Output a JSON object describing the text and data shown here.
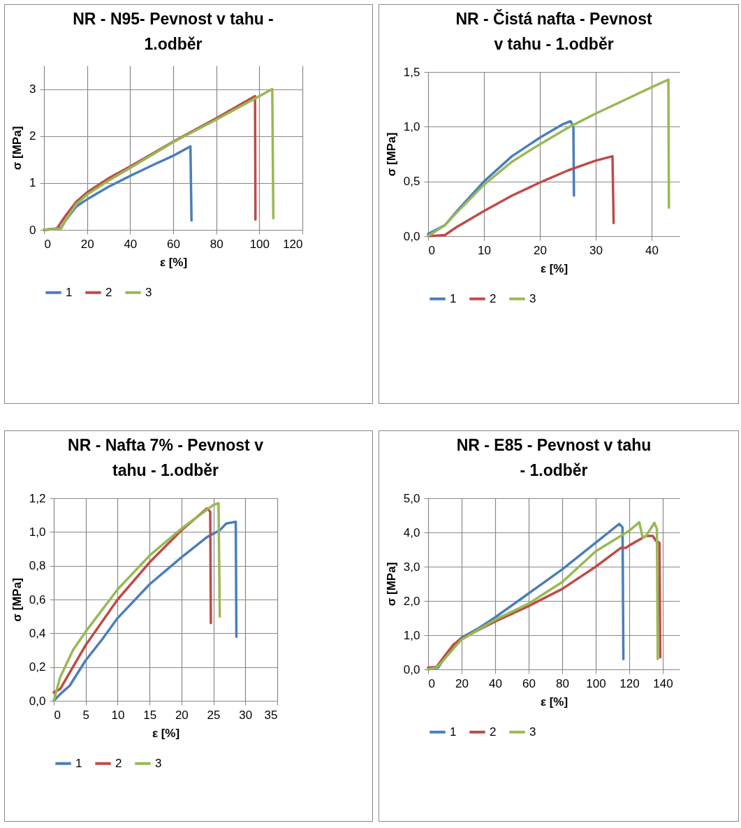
{
  "chart_data": [
    {
      "type": "line",
      "title": "NR - N95- Pevnost v tahu - 1.odběr",
      "xlabel": "ε [%]",
      "ylabel": "σ [MPa]",
      "xlim": [
        0,
        120
      ],
      "xticks": [
        0,
        20,
        40,
        60,
        80,
        100,
        120
      ],
      "ylim": [
        0,
        3.5
      ],
      "yticks": [
        0,
        1,
        2,
        3
      ],
      "grid": true,
      "legend": "bottom",
      "marker": "none",
      "line_style": "solid",
      "series": [
        {
          "name": "1",
          "color": "#4a7ebb",
          "x": [
            0,
            5,
            8,
            10,
            15,
            20,
            30,
            40,
            50,
            60,
            68,
            68.5
          ],
          "values": [
            0,
            0.02,
            0.05,
            0.2,
            0.5,
            0.65,
            0.92,
            1.15,
            1.37,
            1.58,
            1.78,
            0.2
          ]
        },
        {
          "name": "2",
          "color": "#be4b48",
          "x": [
            0,
            6,
            10,
            15,
            20,
            30,
            40,
            60,
            80,
            98,
            98.2
          ],
          "values": [
            0,
            0.03,
            0.3,
            0.6,
            0.8,
            1.1,
            1.35,
            1.88,
            2.38,
            2.85,
            0.22
          ]
        },
        {
          "name": "3",
          "color": "#98b954",
          "x": [
            0,
            8,
            10,
            15,
            20,
            30,
            40,
            60,
            80,
            100,
            106,
            106.5
          ],
          "values": [
            0,
            0.03,
            0.2,
            0.55,
            0.75,
            1.05,
            1.32,
            1.87,
            2.35,
            2.85,
            3.0,
            0.25
          ]
        }
      ]
    },
    {
      "type": "line",
      "title": "NR - Čistá nafta - Pevnost v tahu - 1.odběr",
      "xlabel": "ε [%]",
      "ylabel": "σ [MPa]",
      "xlim": [
        0,
        45
      ],
      "xticks": [
        0,
        10,
        20,
        30,
        40
      ],
      "ylim": [
        0,
        1.5
      ],
      "yticks": [
        {
          "value": 0,
          "label": "0,0"
        },
        {
          "value": 0.5,
          "label": "0,5"
        },
        {
          "value": 1,
          "label": "1,0"
        },
        {
          "value": 1.5,
          "label": "1,5"
        }
      ],
      "grid": true,
      "legend": "bottom",
      "marker": "none",
      "line_style": "solid",
      "series": [
        {
          "name": "1",
          "color": "#4a7ebb",
          "x": [
            0,
            3,
            5,
            10,
            15,
            20,
            24,
            25.5,
            26,
            26.1
          ],
          "values": [
            0.02,
            0.1,
            0.22,
            0.5,
            0.73,
            0.9,
            1.02,
            1.05,
            1.0,
            0.37
          ]
        },
        {
          "name": "2",
          "color": "#be4b48",
          "x": [
            0,
            3,
            5,
            10,
            15,
            20,
            25,
            30,
            33,
            33.2
          ],
          "values": [
            0,
            0.01,
            0.08,
            0.23,
            0.37,
            0.49,
            0.6,
            0.69,
            0.73,
            0.12
          ]
        },
        {
          "name": "3",
          "color": "#98b954",
          "x": [
            0,
            3,
            5,
            10,
            15,
            20,
            25,
            30,
            35,
            40,
            43,
            43.1
          ],
          "values": [
            0,
            0.1,
            0.21,
            0.47,
            0.68,
            0.84,
            0.99,
            1.12,
            1.24,
            1.36,
            1.43,
            0.26
          ]
        }
      ]
    },
    {
      "type": "line",
      "title": "NR - Nafta 7% - Pevnost v tahu - 1.odběr",
      "xlabel": "ε [%]",
      "ylabel": "σ [MPa]",
      "xlim": [
        0,
        35
      ],
      "xticks": [
        0,
        5,
        10,
        15,
        20,
        25,
        30,
        35
      ],
      "ylim": [
        0,
        1.2
      ],
      "yticks": [
        {
          "value": 0,
          "label": "0,0"
        },
        {
          "value": 0.2,
          "label": "0,2"
        },
        {
          "value": 0.4,
          "label": "0,4"
        },
        {
          "value": 0.6,
          "label": "0,6"
        },
        {
          "value": 0.8,
          "label": "0,8"
        },
        {
          "value": 1,
          "label": "1,0"
        },
        {
          "value": 1.2,
          "label": "1,2"
        }
      ],
      "grid": true,
      "legend": "bottom",
      "marker": "none",
      "line_style": "solid",
      "series": [
        {
          "name": "1",
          "color": "#4a7ebb",
          "x": [
            0,
            1,
            2.5,
            4,
            5,
            7.5,
            10,
            15,
            20,
            24,
            26,
            27,
            28.5,
            28.6
          ],
          "values": [
            0,
            0.04,
            0.09,
            0.18,
            0.24,
            0.36,
            0.49,
            0.69,
            0.85,
            0.97,
            1.01,
            1.05,
            1.06,
            0.38
          ]
        },
        {
          "name": "2",
          "color": "#be4b48",
          "x": [
            0,
            1,
            3,
            5,
            10,
            15,
            20,
            24,
            24.5,
            24.6
          ],
          "values": [
            0.05,
            0.07,
            0.2,
            0.33,
            0.6,
            0.82,
            1.01,
            1.14,
            1.12,
            0.46
          ]
        },
        {
          "name": "3",
          "color": "#98b954",
          "x": [
            0,
            1,
            3,
            5,
            10,
            15,
            20,
            25,
            25.8,
            26
          ],
          "values": [
            0,
            0.14,
            0.3,
            0.41,
            0.66,
            0.86,
            1.02,
            1.16,
            1.17,
            0.5
          ]
        }
      ]
    },
    {
      "type": "line",
      "title": "NR - E85 - Pevnost v tahu - 1.odběr",
      "xlabel": "ε [%]",
      "ylabel": "σ [MPa]",
      "xlim": [
        0,
        150
      ],
      "xticks": [
        0,
        20,
        40,
        60,
        80,
        100,
        120,
        140
      ],
      "ylim": [
        0,
        5
      ],
      "yticks": [
        {
          "value": 0,
          "label": "0,0"
        },
        {
          "value": 1,
          "label": "1,0"
        },
        {
          "value": 2,
          "label": "2,0"
        },
        {
          "value": 3,
          "label": "3,0"
        },
        {
          "value": 4,
          "label": "4,0"
        },
        {
          "value": 5,
          "label": "5,0"
        }
      ],
      "grid": true,
      "legend": "bottom",
      "marker": "none",
      "line_style": "solid",
      "series": [
        {
          "name": "1",
          "color": "#4a7ebb",
          "x": [
            0,
            6,
            10,
            15,
            20,
            30,
            40,
            60,
            80,
            100,
            114,
            116,
            116.5
          ],
          "values": [
            0,
            0.05,
            0.35,
            0.7,
            0.93,
            1.2,
            1.52,
            2.22,
            2.92,
            3.7,
            4.25,
            4.15,
            0.3
          ]
        },
        {
          "name": "2",
          "color": "#be4b48",
          "x": [
            0,
            5,
            10,
            15,
            20,
            40,
            60,
            80,
            100,
            115,
            118,
            120,
            130,
            134,
            136,
            138,
            138.5
          ],
          "values": [
            0.05,
            0.07,
            0.4,
            0.72,
            0.9,
            1.4,
            1.85,
            2.35,
            3.0,
            3.55,
            3.55,
            3.62,
            3.9,
            3.9,
            3.75,
            3.7,
            0.35
          ]
        },
        {
          "name": "3",
          "color": "#98b954",
          "x": [
            0,
            5,
            8,
            15,
            20,
            40,
            60,
            80,
            100,
            120,
            126,
            128,
            130,
            135,
            136.5,
            137
          ],
          "values": [
            0,
            0.05,
            0.2,
            0.6,
            0.87,
            1.45,
            1.92,
            2.55,
            3.45,
            4.05,
            4.3,
            3.85,
            3.9,
            4.28,
            4.1,
            0.3
          ]
        }
      ]
    }
  ]
}
